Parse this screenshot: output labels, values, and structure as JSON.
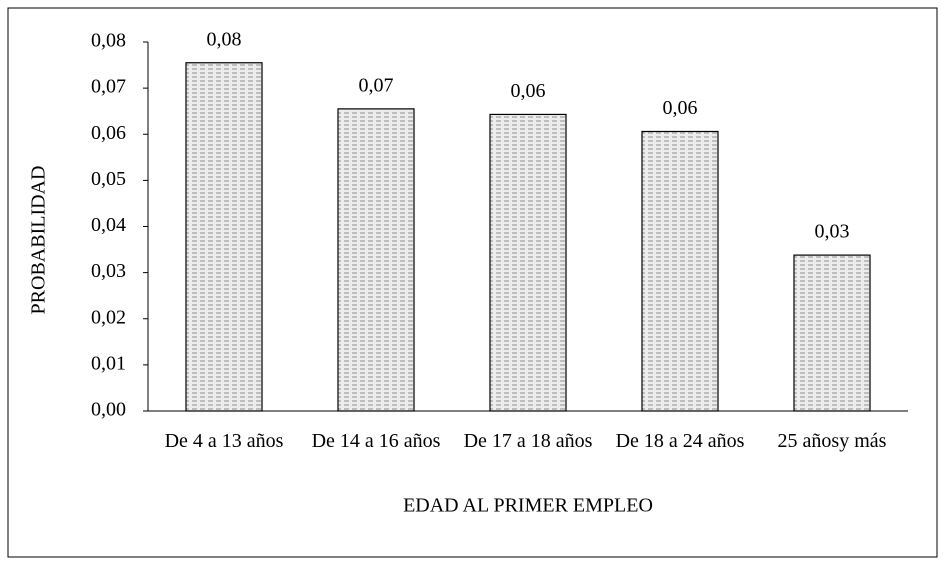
{
  "chart_data": {
    "type": "bar",
    "categories": [
      "De 4 a 13 años",
      "De 14 a 16 años",
      "De 17 a 18 años",
      "De 18 a 24 años",
      "25 añosy más"
    ],
    "values": [
      0.0755,
      0.0655,
      0.0643,
      0.0606,
      0.0338
    ],
    "value_labels": [
      "0,08",
      "0,07",
      "0,06",
      "0,06",
      "0,03"
    ],
    "color": "#e8e8e8",
    "ylim": [
      0,
      0.08
    ],
    "yticks": [
      {
        "value": 0,
        "label": "0,00"
      },
      {
        "value": 0.01,
        "label": "0,01"
      },
      {
        "value": 0.02,
        "label": "0,02"
      },
      {
        "value": 0.03,
        "label": "0,03"
      },
      {
        "value": 0.04,
        "label": "0,04"
      },
      {
        "value": 0.05,
        "label": "0,05"
      },
      {
        "value": 0.06,
        "label": "0,06"
      },
      {
        "value": 0.07,
        "label": "0,07"
      },
      {
        "value": 0.08,
        "label": "0,08"
      }
    ],
    "xlabel": "EDAD AL PRIMER EMPLEO",
    "ylabel": "PROBABILIDAD"
  }
}
